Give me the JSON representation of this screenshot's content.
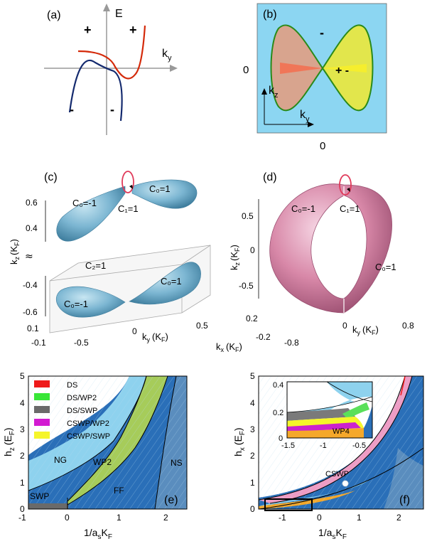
{
  "panel_a": {
    "label": "(a)",
    "e_axis": "E",
    "k_axis_main": "k",
    "k_axis_sub": "y",
    "plus_left": "+",
    "plus_right": "+",
    "minus_left": "-",
    "minus_right": "-",
    "colors": {
      "upper": "#d42a0a",
      "lower": "#142a6e"
    }
  },
  "panel_b": {
    "label": "(b)",
    "zero_left": "0",
    "zero_bottom": "0",
    "minus_top": "-",
    "plus_minus": "+ -",
    "kz_main": "k",
    "kz_sub": "z",
    "ky_main": "k",
    "ky_sub": "y",
    "colors": {
      "background": "#8cd6f2",
      "left_lobe": "#d8a48e",
      "right_lobe": "#e2e64c",
      "left_wedge": "#f07658",
      "right_wedge": "#f5ee2e",
      "outline": "#2a8a1a"
    }
  },
  "panel_c": {
    "label": "(c)",
    "c0_minus": "C₀=-1",
    "c0_plus": "C₀=1",
    "c1": "C₁=1",
    "c2": "C₂=1",
    "c0_minus_low": "C₀=-1",
    "c0_plus_low": "C₀=1",
    "kz_axis_main": "k",
    "kz_axis_sub": "z",
    "kz_axis_unit_main": "(K",
    "kz_axis_unit_sub": "F",
    "kz_axis_unit_end": ")",
    "ticks_kz": [
      "0.6",
      "0.4",
      "-0.4",
      "-0.6"
    ],
    "break_symbol": "≈",
    "ticks_ky": [
      "-0.5",
      "0",
      "0.5"
    ],
    "ticks_kx": [
      "0.1",
      "-0.1"
    ],
    "ky_label_main": "k",
    "ky_label_sub": "y",
    "ky_label_unit": "(K",
    "ky_label_unit_sub": "F",
    "ky_label_end": ")",
    "colors": {
      "surface": "#7cb6d2",
      "loop": "#e03a5a"
    }
  },
  "panel_d": {
    "label": "(d)",
    "c0_minus": "C₀=-1",
    "c1": "C₁=1",
    "c0_plus": "C₀=1",
    "ticks_kz": [
      "0.5",
      "0",
      "-0.5"
    ],
    "kz_axis_main": "k",
    "kz_axis_sub": "z",
    "kz_axis_unit": "(K",
    "kz_axis_unit_sub": "F",
    "kz_axis_end": ")",
    "ticks_kx": [
      "0.2",
      "-0.2"
    ],
    "kx_label_main": "k",
    "kx_label_sub": "x",
    "kx_label_unit": "(K",
    "kx_label_unit_sub": "F",
    "kx_label_end": ")",
    "ticks_ky": [
      "-0.8",
      "0",
      "0.8"
    ],
    "ky_label_main": "k",
    "ky_label_sub": "y",
    "ky_label_unit": "(K",
    "ky_label_unit_sub": "F",
    "ky_label_end": ")",
    "colors": {
      "surface": "#d888a8",
      "loop": "#e03a5a"
    }
  },
  "panel_e": {
    "label": "(e)",
    "ylabel_main": "h",
    "ylabel_sub": "z",
    "ylabel_unit": "(E",
    "ylabel_unit_sub": "F",
    "ylabel_end": ")",
    "xlabel_pre": "1/a",
    "xlabel_sub": "s",
    "xlabel_post": "K",
    "xlabel_post_sub": "F",
    "xticks": [
      "-1",
      "0",
      "1",
      "2"
    ],
    "yticks": [
      "0",
      "1",
      "2",
      "3",
      "4",
      "5"
    ],
    "regions": {
      "ng": "NG",
      "wp2": "WP2",
      "ns": "NS",
      "swp": "SWP",
      "ff": "FF"
    },
    "legend": [
      {
        "label": "DS",
        "color": "#ee1a1a"
      },
      {
        "label": "DS/WP2",
        "color": "#38e638"
      },
      {
        "label": "DS/SWP",
        "color": "#6a6a6a"
      },
      {
        "label": "CSWP/WP2",
        "color": "#d21ad2"
      },
      {
        "label": "CSWP/SWP",
        "color": "#f5f52a"
      }
    ],
    "colors": {
      "ng": "#8ed2ee",
      "wp2": "#a6cc5a",
      "ff": "#2a6fb8",
      "ns": "#5a8dbe"
    }
  },
  "panel_f": {
    "label": "(f)",
    "ylabel_main": "h",
    "ylabel_sub": "x",
    "ylabel_unit": "(E",
    "ylabel_unit_sub": "F",
    "ylabel_end": ")",
    "xlabel_pre": "1/a",
    "xlabel_sub": "s",
    "xlabel_post": "K",
    "xlabel_post_sub": "F",
    "xticks": [
      "-1",
      "0",
      "1",
      "2"
    ],
    "yticks": [
      "0",
      "1",
      "2",
      "3",
      "4",
      "5"
    ],
    "cswp_label": "CSWP",
    "inset": {
      "xticks": [
        "-1.5",
        "-1",
        "-0.5"
      ],
      "yticks": [
        "0",
        "0.2",
        "0.4"
      ],
      "wp4": "WP4"
    },
    "colors": {
      "main": "#2a6fb8",
      "pink": "#ee9cc4",
      "light": "#8ed2ee",
      "orange": "#f5a82a",
      "gray": "#7a7a7a",
      "green": "#5ae05a",
      "magenta": "#cc22cc",
      "yellow": "#f5f52a"
    }
  }
}
